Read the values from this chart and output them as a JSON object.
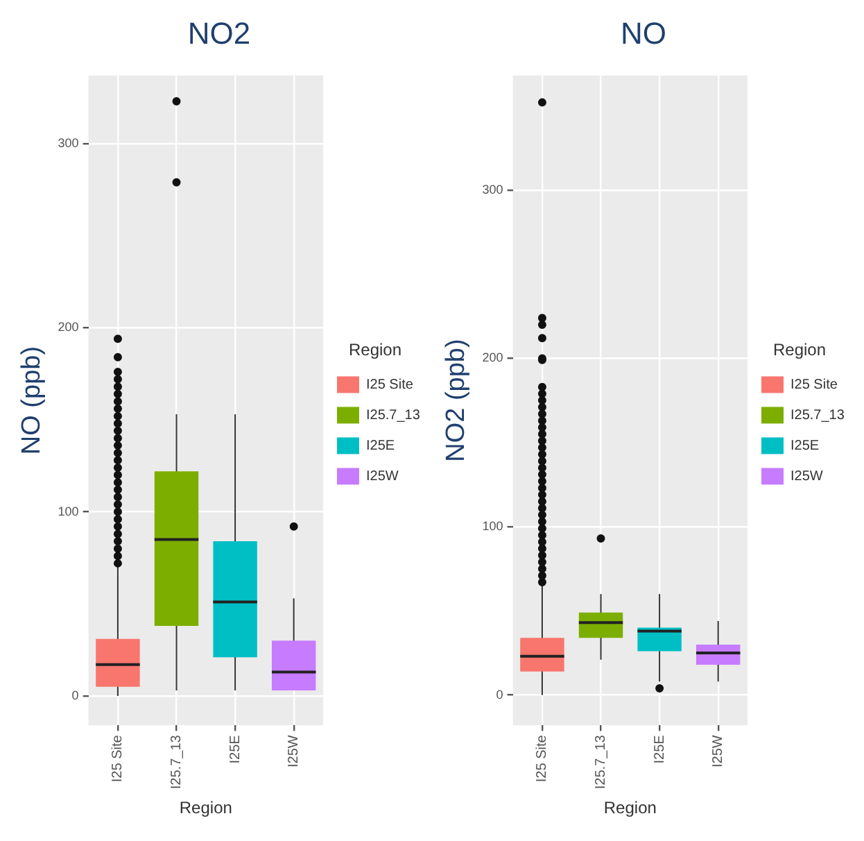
{
  "chart_data": [
    {
      "type": "box",
      "title": "NO2",
      "xlabel": "Region",
      "ylabel": "NO (ppb)",
      "legend_title": "Region",
      "legend": "right",
      "grid": true,
      "categories": [
        "I25 Site",
        "I25.7_13",
        "I25E",
        "I25W"
      ],
      "ylim": [
        -16,
        337
      ],
      "yticks": [
        0,
        100,
        200,
        300
      ],
      "series": [
        {
          "name": "I25 Site",
          "color": "#f8766d",
          "boxes": [
            {
              "low": 0,
              "q1": 5,
              "median": 17,
              "q3": 31,
              "high": 71,
              "outliers": [
                72,
                76,
                80,
                84,
                88,
                92,
                96,
                100,
                104,
                108,
                112,
                116,
                120,
                124,
                128,
                132,
                136,
                140,
                144,
                148,
                152,
                156,
                160,
                164,
                168,
                172,
                176,
                184,
                194
              ]
            },
            null,
            null,
            null
          ]
        },
        {
          "name": "I25.7_13",
          "color": "#7cae00",
          "boxes": [
            null,
            {
              "low": 3,
              "q1": 38,
              "median": 85,
              "q3": 122,
              "high": 153,
              "outliers": [
                279,
                323
              ]
            },
            null,
            null
          ]
        },
        {
          "name": "I25E",
          "color": "#00bfc4",
          "boxes": [
            null,
            null,
            {
              "low": 3,
              "q1": 21,
              "median": 51,
              "q3": 84,
              "high": 153
            },
            null
          ]
        },
        {
          "name": "I25W",
          "color": "#c77cff",
          "boxes": [
            null,
            null,
            null,
            {
              "low": 3,
              "q1": 3,
              "median": 13,
              "q3": 30,
              "high": 53,
              "outliers": [
                92
              ]
            }
          ]
        }
      ]
    },
    {
      "type": "box",
      "title": "NO",
      "xlabel": "Region",
      "ylabel": "NO2 (ppb)",
      "legend_title": "Region",
      "legend": "right",
      "grid": true,
      "categories": [
        "I25 Site",
        "I25.7_13",
        "I25E",
        "I25W"
      ],
      "ylim": [
        -18,
        368
      ],
      "yticks": [
        0,
        100,
        200,
        300
      ],
      "series": [
        {
          "name": "I25 Site",
          "color": "#f8766d",
          "boxes": [
            {
              "low": 0,
              "q1": 14,
              "median": 23,
              "q3": 34,
              "high": 66,
              "outliers": [
                67,
                71,
                75,
                79,
                83,
                87,
                91,
                95,
                99,
                103,
                107,
                111,
                115,
                119,
                123,
                127,
                131,
                135,
                139,
                143,
                147,
                151,
                155,
                159,
                163,
                167,
                171,
                175,
                179,
                183,
                199,
                200,
                212,
                220,
                224,
                352
              ]
            },
            null,
            null,
            null
          ]
        },
        {
          "name": "I25.7_13",
          "color": "#7cae00",
          "boxes": [
            null,
            {
              "low": 21,
              "q1": 34,
              "median": 43,
              "q3": 49,
              "high": 60,
              "outliers": [
                93
              ]
            },
            null,
            null
          ]
        },
        {
          "name": "I25E",
          "color": "#00bfc4",
          "boxes": [
            null,
            null,
            {
              "low": 8,
              "q1": 26,
              "median": 38,
              "q3": 40,
              "high": 60,
              "outliers": [
                4
              ]
            },
            null
          ]
        },
        {
          "name": "I25W",
          "color": "#c77cff",
          "boxes": [
            null,
            null,
            null,
            {
              "low": 8,
              "q1": 18,
              "median": 25,
              "q3": 30,
              "high": 44
            }
          ]
        }
      ]
    }
  ]
}
